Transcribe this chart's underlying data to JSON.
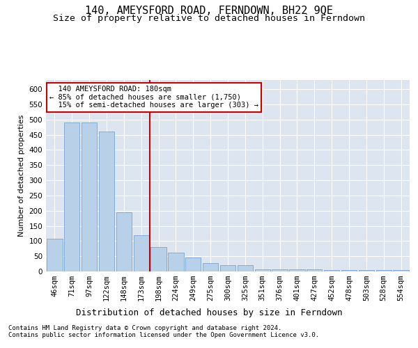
{
  "title": "140, AMEYSFORD ROAD, FERNDOWN, BH22 9QE",
  "subtitle": "Size of property relative to detached houses in Ferndown",
  "xlabel": "Distribution of detached houses by size in Ferndown",
  "ylabel": "Number of detached properties",
  "footer_line1": "Contains HM Land Registry data © Crown copyright and database right 2024.",
  "footer_line2": "Contains public sector information licensed under the Open Government Licence v3.0.",
  "categories": [
    "46sqm",
    "71sqm",
    "97sqm",
    "122sqm",
    "148sqm",
    "173sqm",
    "198sqm",
    "224sqm",
    "249sqm",
    "275sqm",
    "300sqm",
    "325sqm",
    "351sqm",
    "376sqm",
    "401sqm",
    "427sqm",
    "452sqm",
    "478sqm",
    "503sqm",
    "528sqm",
    "554sqm"
  ],
  "values": [
    107,
    490,
    490,
    460,
    195,
    120,
    80,
    62,
    45,
    27,
    20,
    20,
    8,
    8,
    8,
    8,
    5,
    5,
    5,
    5,
    5
  ],
  "bar_color": "#b8d0e8",
  "bar_edge_color": "#6699cc",
  "vline_x": 5.5,
  "vline_color": "#cc0000",
  "annotation_text": "  140 AMEYSFORD ROAD: 180sqm\n← 85% of detached houses are smaller (1,750)\n  15% of semi-detached houses are larger (303) →",
  "annotation_box_color": "#cc0000",
  "ylim": [
    0,
    630
  ],
  "yticks": [
    0,
    50,
    100,
    150,
    200,
    250,
    300,
    350,
    400,
    450,
    500,
    550,
    600
  ],
  "background_color": "#dde6f0",
  "plot_bg_color": "#dde6f0",
  "grid_color": "#ffffff",
  "title_fontsize": 11,
  "subtitle_fontsize": 9.5,
  "tick_fontsize": 7.5,
  "ylabel_fontsize": 8,
  "xlabel_fontsize": 9,
  "footer_fontsize": 6.5
}
